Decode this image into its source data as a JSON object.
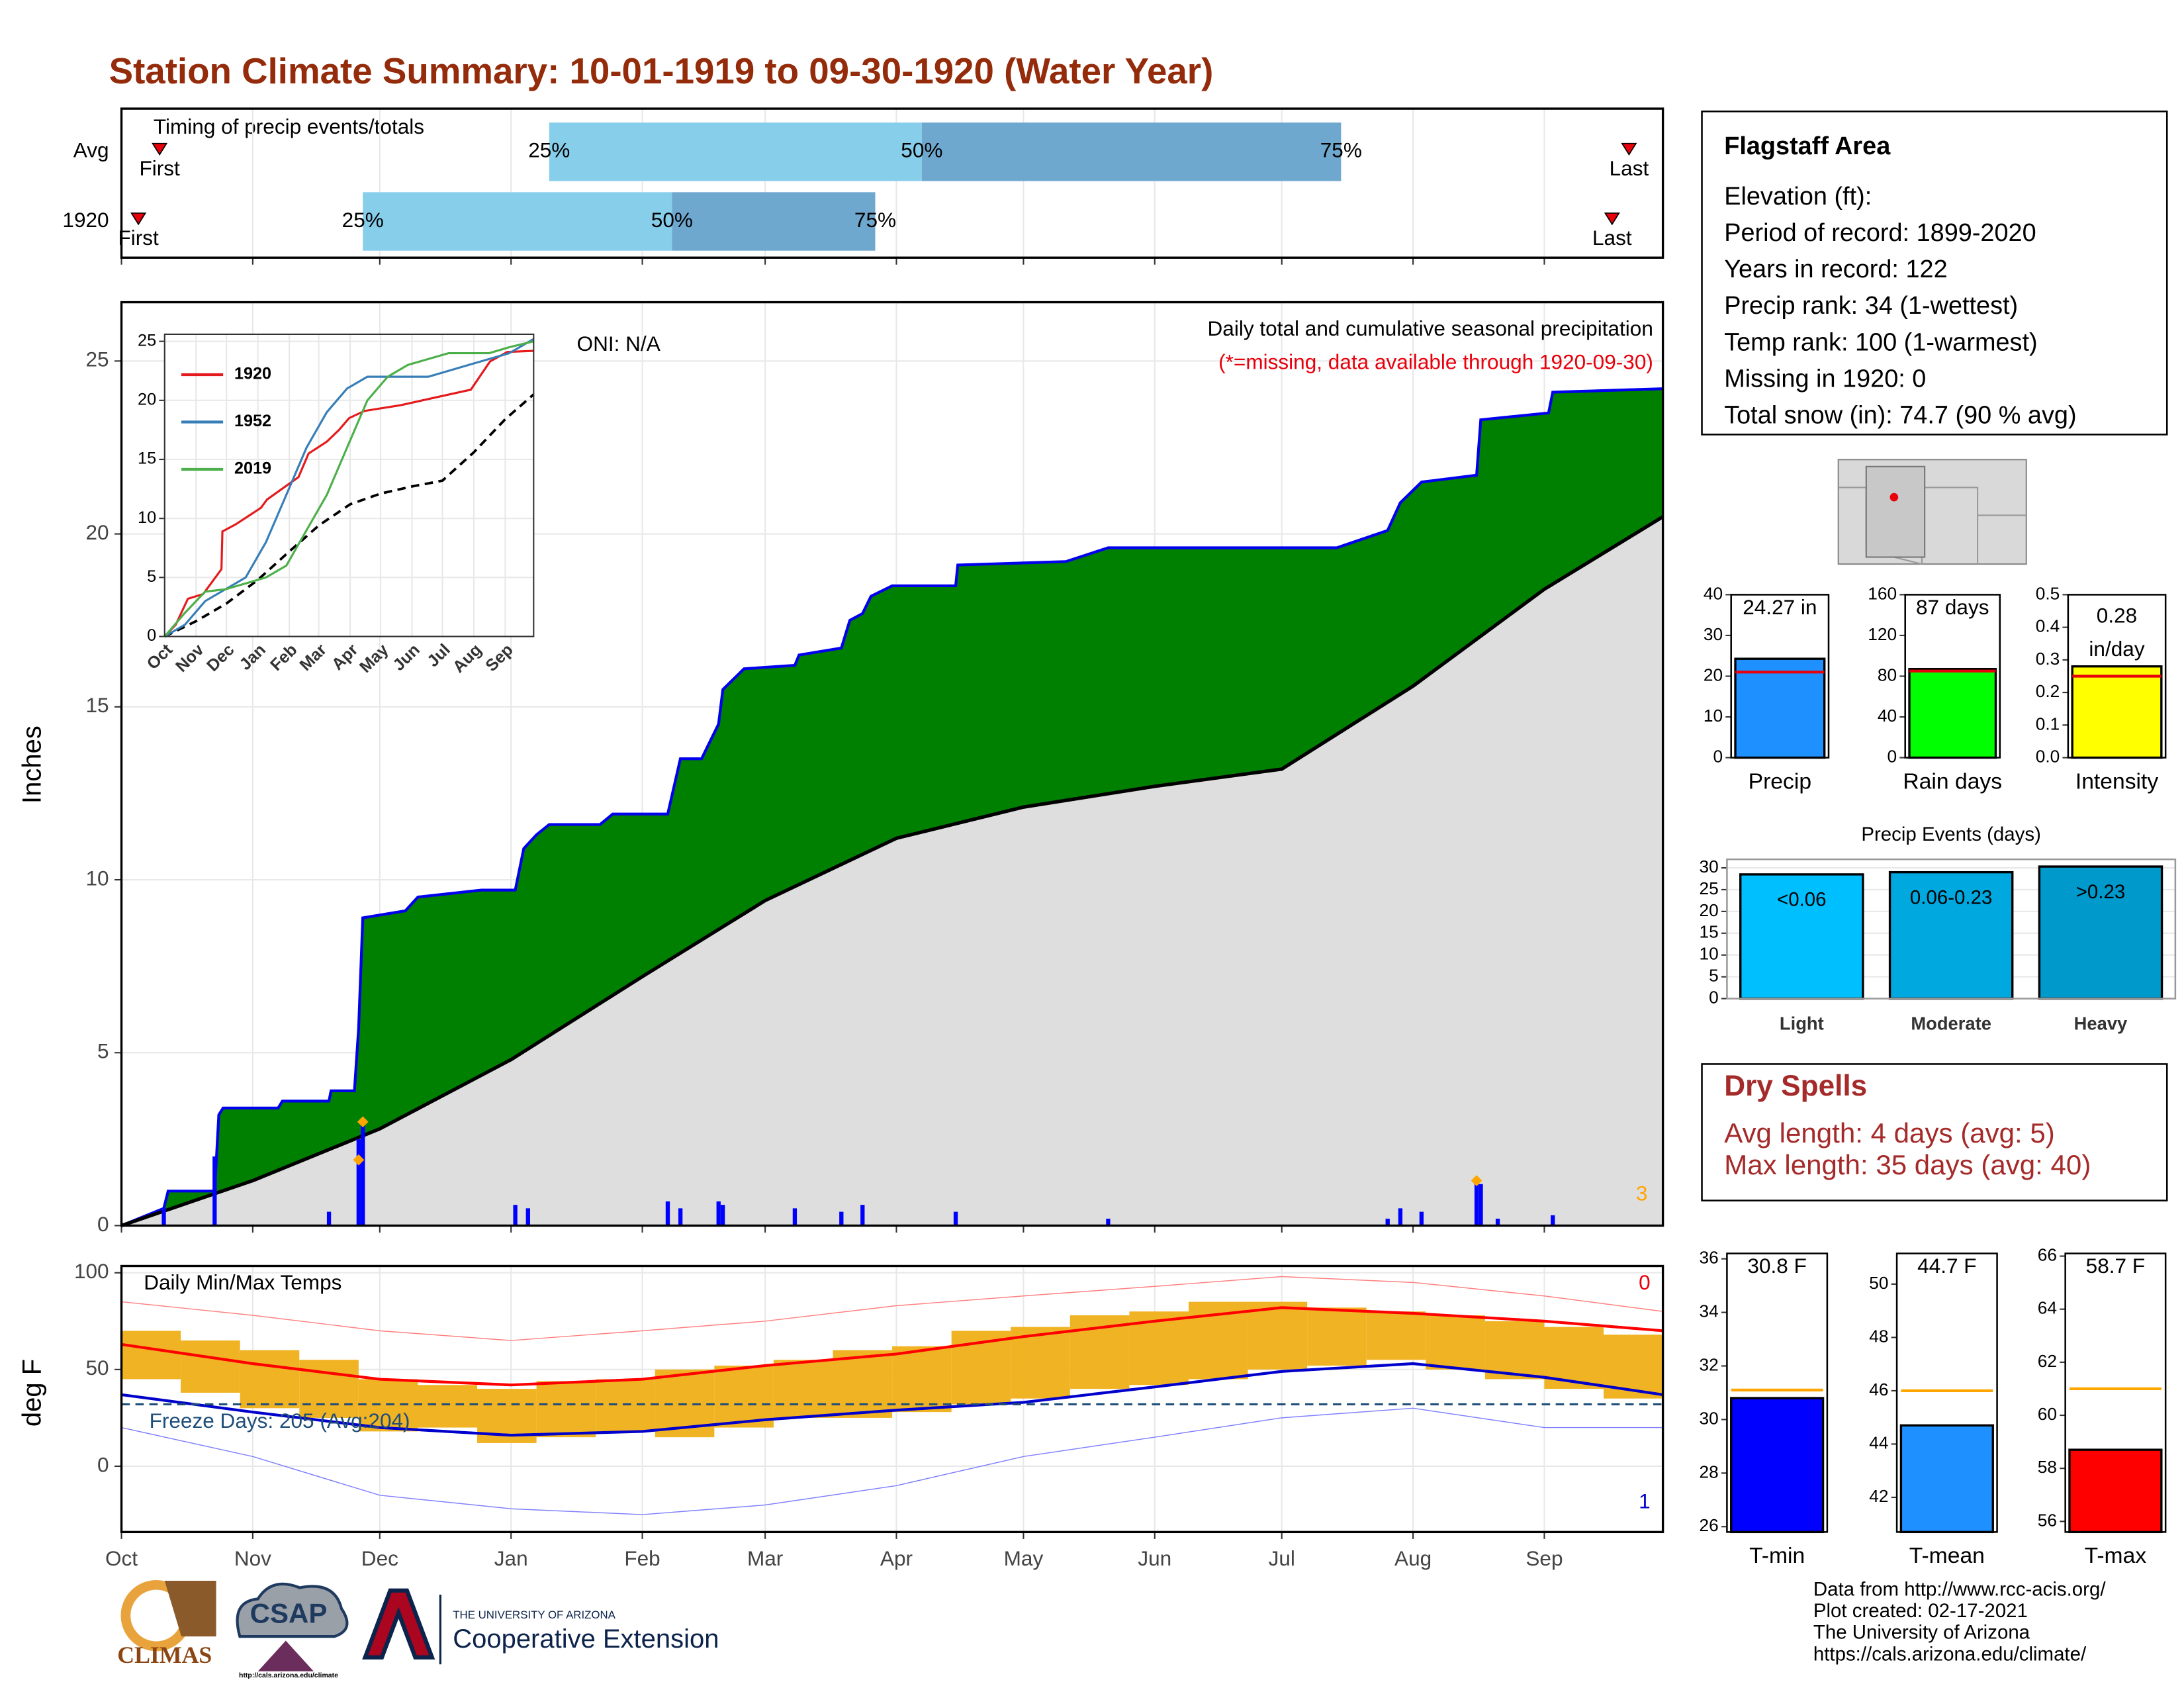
{
  "title": "Station Climate Summary: 10-01-1919 to 09-30-1920 (Water Year)",
  "timing": {
    "label": "Timing of precip events/totals",
    "xlim": [
      0,
      364
    ],
    "rows": [
      {
        "name": "Avg",
        "first": 9,
        "p25": 101,
        "p50": 189,
        "p75": 288,
        "last": 356
      },
      {
        "name": "1920",
        "first": 4,
        "p25": 57,
        "p50": 130,
        "p75": 178,
        "last": 352
      }
    ],
    "first_label": "First",
    "last_label": "Last",
    "p25_label": "25%",
    "p50_label": "50%",
    "p75_label": "75%",
    "colors": [
      "#87ceeb",
      "#6fa8cf"
    ],
    "marker_color": "#e8000b"
  },
  "chart_data": [
    {
      "type": "area",
      "ylabel": "Inches",
      "xlim": [
        0,
        364
      ],
      "ylim": [
        0,
        26.7
      ],
      "yticks": [
        0,
        5,
        10,
        15,
        20,
        25
      ],
      "xticks": [
        {
          "value": 0,
          "label": "Oct"
        },
        {
          "value": 31,
          "label": "Nov"
        },
        {
          "value": 61,
          "label": "Dec"
        },
        {
          "value": 92,
          "label": "Jan"
        },
        {
          "value": 123,
          "label": "Feb"
        },
        {
          "value": 152,
          "label": "Mar"
        },
        {
          "value": 183,
          "label": "Apr"
        },
        {
          "value": 213,
          "label": "May"
        },
        {
          "value": 244,
          "label": "Jun"
        },
        {
          "value": 274,
          "label": "Jul"
        },
        {
          "value": 305,
          "label": "Aug"
        },
        {
          "value": 336,
          "label": "Sep"
        }
      ],
      "oni": "ONI: N/A",
      "caption": "Daily total and cumulative seasonal precipitation",
      "note": "(*=missing, data available through 1920-09-30)",
      "count": "3",
      "note_color": "#e8000b",
      "count_color": "#ffa500",
      "grid": true,
      "series": [
        {
          "color": "#0000ee",
          "fill": "#008000",
          "x": [
            0,
            10,
            11,
            22,
            23,
            24,
            37,
            38,
            49,
            49.5,
            55,
            56,
            57,
            67,
            70,
            85,
            93,
            95,
            98,
            101,
            113,
            116,
            129,
            132,
            137,
            141,
            142,
            147,
            159,
            160,
            170,
            172,
            175,
            177,
            182,
            197,
            197.5,
            223,
            233,
            287,
            299,
            302,
            307,
            320,
            321,
            337,
            338,
            364
          ],
          "values": [
            0,
            0.5,
            1.0,
            1.0,
            3.2,
            3.4,
            3.4,
            3.6,
            3.6,
            3.9,
            3.9,
            5.7,
            8.9,
            9.1,
            9.5,
            9.7,
            9.7,
            10.9,
            11.3,
            11.6,
            11.6,
            11.9,
            11.9,
            13.5,
            13.5,
            14.5,
            15.5,
            16.1,
            16.2,
            16.5,
            16.7,
            17.5,
            17.7,
            18.2,
            18.5,
            18.5,
            19.1,
            19.2,
            19.6,
            19.6,
            20.1,
            20.9,
            21.5,
            21.7,
            23.3,
            23.5,
            24.1,
            24.2
          ]
        },
        {
          "color": "#000000",
          "fill": "#dedede",
          "x": [
            0,
            31,
            61,
            92,
            123,
            152,
            183,
            213,
            244,
            274,
            305,
            336,
            364
          ],
          "values": [
            0,
            1.3,
            2.8,
            4.8,
            7.2,
            9.4,
            11.2,
            12.1,
            12.7,
            13.2,
            15.6,
            18.4,
            20.5
          ]
        }
      ],
      "daily": {
        "color": "#0000ff",
        "x": [
          10,
          22,
          49,
          56,
          57,
          93,
          96,
          129,
          132,
          141,
          142,
          159,
          170,
          175,
          197,
          233,
          299,
          302,
          307,
          320,
          321,
          325,
          338
        ],
        "values": [
          0.5,
          2.0,
          0.4,
          2.5,
          3.0,
          0.6,
          0.5,
          0.7,
          0.5,
          0.7,
          0.6,
          0.5,
          0.4,
          0.6,
          0.4,
          0.2,
          0.2,
          0.5,
          0.4,
          1.3,
          1.2,
          0.2,
          0.3
        ]
      },
      "records": {
        "color": "#ffa500",
        "x": [
          56,
          57,
          320
        ],
        "values": [
          1.9,
          3.0,
          1.3
        ]
      }
    },
    {
      "type": "line",
      "xlim": [
        0,
        364
      ],
      "ylim": [
        0,
        25.6
      ],
      "yticks": [
        0,
        5,
        10,
        15,
        20,
        25
      ],
      "series": [
        {
          "name": "1920",
          "color": "#e41a1c",
          "x": [
            0,
            11,
            23,
            38,
            56,
            57,
            70,
            95,
            101,
            132,
            142,
            160,
            172,
            182,
            197,
            233,
            302,
            321,
            338,
            364
          ],
          "values": [
            0,
            1.0,
            3.2,
            3.6,
            5.7,
            8.9,
            9.5,
            10.9,
            11.6,
            13.5,
            15.5,
            16.5,
            17.5,
            18.5,
            19.1,
            19.6,
            20.9,
            23.3,
            24.1,
            24.2
          ]
        },
        {
          "name": "1952",
          "color": "#377eb8",
          "x": [
            0,
            20,
            40,
            60,
            80,
            100,
            120,
            140,
            160,
            180,
            200,
            220,
            240,
            260,
            280,
            300,
            320,
            340,
            364
          ],
          "values": [
            0,
            1,
            3,
            4,
            5,
            8,
            12,
            16,
            19,
            21,
            22,
            22,
            22,
            22,
            22.5,
            23,
            23.5,
            24,
            25.2
          ]
        },
        {
          "name": "2019",
          "color": "#4daf4a",
          "x": [
            0,
            20,
            40,
            60,
            80,
            100,
            120,
            140,
            160,
            180,
            200,
            220,
            240,
            260,
            280,
            300,
            320,
            340,
            364
          ],
          "values": [
            0,
            2,
            3.8,
            4,
            4.5,
            5,
            6,
            9,
            12,
            16,
            20,
            22,
            23,
            23.5,
            24,
            24,
            24,
            24.5,
            25
          ]
        }
      ],
      "avg": {
        "color": "#000000",
        "x": [
          0,
          31,
          61,
          92,
          123,
          152,
          183,
          213,
          244,
          274,
          305,
          336,
          364
        ],
        "values": [
          0,
          1.3,
          2.8,
          4.8,
          7.2,
          9.4,
          11.2,
          12.1,
          12.7,
          13.2,
          15.6,
          18.4,
          20.5
        ]
      }
    },
    {
      "type": "range",
      "title": "Daily Min/Max Temps",
      "ylabel": "deg F",
      "xlim": [
        0,
        364
      ],
      "ylim": [
        -34,
        103.5
      ],
      "yticks": [
        0,
        50,
        100
      ],
      "bar_color": "#f0b323",
      "x": [
        0,
        14,
        28,
        42,
        56,
        70,
        84,
        98,
        112,
        126,
        140,
        154,
        168,
        182,
        196,
        210,
        224,
        238,
        252,
        266,
        280,
        294,
        308,
        322,
        336,
        350
      ],
      "max": [
        70,
        65,
        60,
        55,
        45,
        42,
        40,
        44,
        45,
        50,
        52,
        55,
        60,
        62,
        70,
        72,
        78,
        80,
        85,
        85,
        82,
        80,
        78,
        75,
        72,
        68
      ],
      "min": [
        45,
        38,
        30,
        25,
        18,
        20,
        12,
        15,
        18,
        15,
        20,
        25,
        25,
        28,
        32,
        35,
        40,
        42,
        45,
        50,
        52,
        55,
        50,
        45,
        40,
        35
      ],
      "lines": [
        {
          "color": "#ff0000",
          "width": 2,
          "x": [
            0,
            31,
            61,
            92,
            123,
            152,
            183,
            213,
            244,
            274,
            305,
            336,
            364
          ],
          "values": [
            63,
            53,
            45,
            42,
            45,
            52,
            58,
            67,
            75,
            82,
            79,
            75,
            70
          ]
        },
        {
          "color": "#0000cc",
          "width": 2,
          "x": [
            0,
            31,
            61,
            92,
            123,
            152,
            183,
            213,
            244,
            274,
            305,
            336,
            364
          ],
          "values": [
            37,
            28,
            20,
            16,
            18,
            24,
            29,
            33,
            41,
            49,
            53,
            46,
            37
          ]
        },
        {
          "color": "#ff8080",
          "width": 0.7,
          "x": [
            0,
            31,
            61,
            92,
            123,
            152,
            183,
            213,
            244,
            274,
            305,
            336,
            364
          ],
          "values": [
            85,
            78,
            70,
            65,
            70,
            75,
            83,
            88,
            93,
            98,
            95,
            88,
            80
          ]
        },
        {
          "color": "#8080ff",
          "width": 0.7,
          "x": [
            0,
            31,
            61,
            92,
            123,
            152,
            183,
            213,
            244,
            274,
            305,
            336,
            364
          ],
          "values": [
            20,
            5,
            -15,
            -22,
            -25,
            -20,
            -10,
            5,
            15,
            25,
            30,
            20,
            20
          ]
        }
      ],
      "freeze": {
        "value": 32,
        "label": "Freeze Days: 205 (Avg:204)",
        "color": "#1f4e79"
      },
      "max_count": "0",
      "min_count": "1",
      "max_color": "#e8000b",
      "min_color": "#0000cc"
    },
    {
      "type": "bar",
      "categories": [
        "Precip"
      ],
      "values": [
        24.27
      ],
      "value_labels": [
        "24.27 in"
      ],
      "avg": 21,
      "ylim": [
        0,
        40
      ],
      "yticks": [
        0,
        10,
        20,
        30,
        40
      ],
      "color": "#1e90ff",
      "avg_color": "#e8000b"
    },
    {
      "type": "bar",
      "categories": [
        "Rain days"
      ],
      "values": [
        87
      ],
      "value_labels": [
        "87 days"
      ],
      "avg": 85,
      "ylim": [
        0,
        160
      ],
      "yticks": [
        0,
        40,
        80,
        120,
        160
      ],
      "color": "#00ff00",
      "avg_color": "#e8000b"
    },
    {
      "type": "bar",
      "categories": [
        "Intensity"
      ],
      "values": [
        0.28
      ],
      "value_labels": [
        "0.28"
      ],
      "unit": "in/day",
      "avg": 0.25,
      "ylim": [
        0,
        0.5
      ],
      "yticks": [
        {
          "value": 0,
          "label": "0.0"
        },
        0.1,
        0.2,
        0.3,
        0.4,
        0.5
      ],
      "color": "#ffff00",
      "avg_color": "#e8000b"
    },
    {
      "type": "bar",
      "title": "Precip Events (days)",
      "categories": [
        "Light",
        "Moderate",
        "Heavy"
      ],
      "bar_labels": [
        "<0.06",
        "0.06-0.23",
        ">0.23"
      ],
      "values": [
        28.5,
        29,
        30.3
      ],
      "colors": [
        "#00bfff",
        "#00a8e0",
        "#0099cc"
      ],
      "ylim": [
        0,
        31
      ],
      "yticks": [
        0,
        5,
        10,
        15,
        20,
        25,
        30
      ],
      "grid": true
    },
    {
      "type": "bar",
      "categories": [
        "T-min"
      ],
      "values": [
        30.8
      ],
      "value_labels": [
        "30.8 F"
      ],
      "avg": 31.1,
      "ylim": [
        25.8,
        36.2
      ],
      "yticks": [
        26,
        28,
        30,
        32,
        34,
        36
      ],
      "color": "#0000ff",
      "avg_color": "#ffa500"
    },
    {
      "type": "bar",
      "categories": [
        "T-mean"
      ],
      "values": [
        44.7
      ],
      "value_labels": [
        "44.7 F"
      ],
      "avg": 46,
      "ylim": [
        40.7,
        51.15
      ],
      "yticks": [
        42,
        44,
        46,
        48,
        50
      ],
      "color": "#1e90ff",
      "avg_color": "#ffa500"
    },
    {
      "type": "bar",
      "categories": [
        "T-max"
      ],
      "values": [
        58.7
      ],
      "value_labels": [
        "58.7 F"
      ],
      "avg": 61,
      "ylim": [
        55.6,
        66.1
      ],
      "yticks": [
        56,
        58,
        60,
        62,
        64,
        66
      ],
      "color": "#ff0000",
      "avg_color": "#ffa500"
    }
  ],
  "info": {
    "title": "Flagstaff Area",
    "lines": [
      "Elevation (ft):",
      "Period of record: 1899-2020",
      "Years in record: 122",
      "Precip rank: 34 (1-wettest)",
      "Temp rank: 100 (1-warmest)",
      "Missing in 1920: 0",
      "Total snow (in): 74.7 (90 % avg)"
    ]
  },
  "dry_spells": {
    "title": "Dry Spells",
    "lines": [
      "Avg length: 4 days (avg: 5)",
      "Max length: 35 days (avg: 40)"
    ]
  },
  "footer": [
    "Data from http://www.rcc-acis.org/",
    "Plot created: 02-17-2021",
    "The University of Arizona",
    "https://cals.arizona.edu/climate/"
  ],
  "logos": {
    "climas": "CLIMAS",
    "csap": "CSAP",
    "csap_url": "http://cals.arizona.edu/climate",
    "ua": "THE UNIVERSITY OF ARIZONA",
    "coop": "Cooperative Extension"
  }
}
